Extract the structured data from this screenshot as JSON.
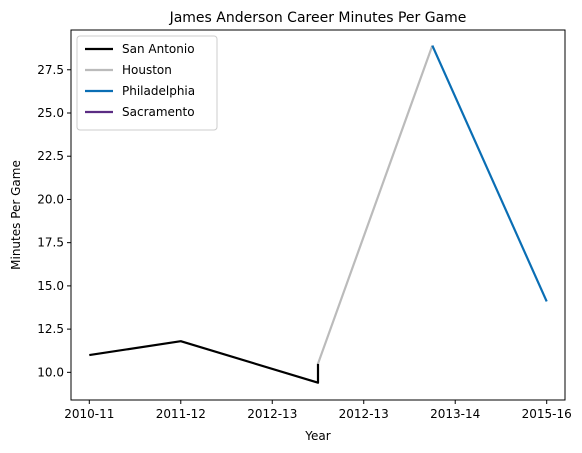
{
  "chart_data": {
    "type": "line",
    "title": "James Anderson  Career Minutes Per Game",
    "xlabel": "Year",
    "ylabel": "Minutes Per Game",
    "x_ticks": [
      {
        "pos": 0,
        "label": "2010-11"
      },
      {
        "pos": 1,
        "label": "2011-12"
      },
      {
        "pos": 2,
        "label": "2012-13"
      },
      {
        "pos": 3,
        "label": "2012-13"
      },
      {
        "pos": 4,
        "label": "2013-14"
      },
      {
        "pos": 5,
        "label": "2015-16"
      }
    ],
    "xlim": [
      -0.2,
      5.2
    ],
    "ylim": [
      8.4,
      29.8
    ],
    "y_ticks": [
      {
        "value": 10.0,
        "label": "10.0"
      },
      {
        "value": 12.5,
        "label": "12.5"
      },
      {
        "value": 15.0,
        "label": "15.0"
      },
      {
        "value": 17.5,
        "label": "17.5"
      },
      {
        "value": 20.0,
        "label": "20.0"
      },
      {
        "value": 22.5,
        "label": "22.5"
      },
      {
        "value": 25.0,
        "label": "25.0"
      },
      {
        "value": 27.5,
        "label": "27.5"
      }
    ],
    "legend_position": "top-left",
    "series": [
      {
        "name": "San Antonio",
        "color": "#000000",
        "points": [
          [
            0,
            11.0
          ],
          [
            1.0,
            11.8
          ],
          [
            2.5,
            9.4
          ],
          [
            2.5,
            10.5
          ]
        ]
      },
      {
        "name": "Houston",
        "color": "#bbbbbb",
        "points": [
          [
            2.5,
            10.5
          ],
          [
            3.75,
            28.9
          ]
        ]
      },
      {
        "name": "Philadelphia",
        "color": "#0a6eb4",
        "points": [
          [
            3.75,
            28.9
          ],
          [
            5.0,
            14.1
          ]
        ]
      },
      {
        "name": "Sacramento",
        "color": "#5b2c83",
        "points": []
      }
    ]
  }
}
